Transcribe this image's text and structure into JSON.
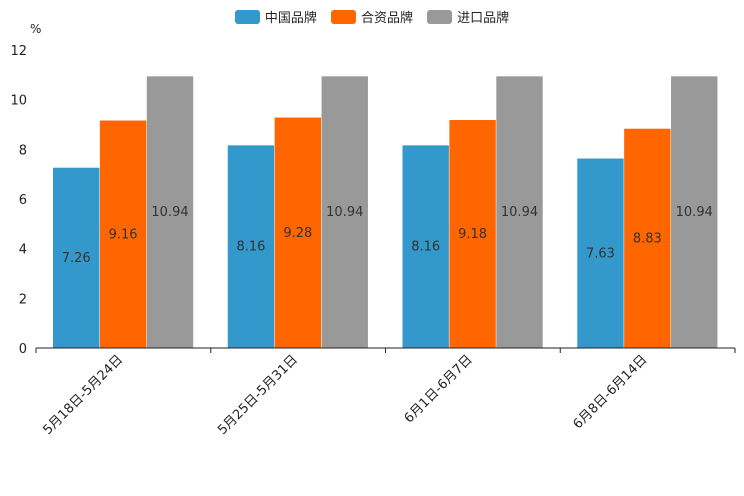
{
  "chart_data": {
    "type": "bar",
    "unit": "%",
    "categories": [
      "5月18日-5月24日",
      "5月25日-5月31日",
      "6月1日-6月7日",
      "6月8日-6月14日"
    ],
    "series": [
      {
        "name": "中国品牌",
        "color": "#3398cc",
        "values": [
          7.26,
          8.16,
          8.16,
          7.63
        ]
      },
      {
        "name": "合资品牌",
        "color": "#ff6600",
        "values": [
          9.16,
          9.28,
          9.18,
          8.83
        ]
      },
      {
        "name": "进口品牌",
        "color": "#999999",
        "values": [
          10.94,
          10.94,
          10.94,
          10.94
        ]
      }
    ],
    "yticks": [
      0,
      2,
      4,
      6,
      8,
      10,
      12
    ],
    "ylim": [
      0,
      12
    ],
    "legend_position": "top-center"
  }
}
